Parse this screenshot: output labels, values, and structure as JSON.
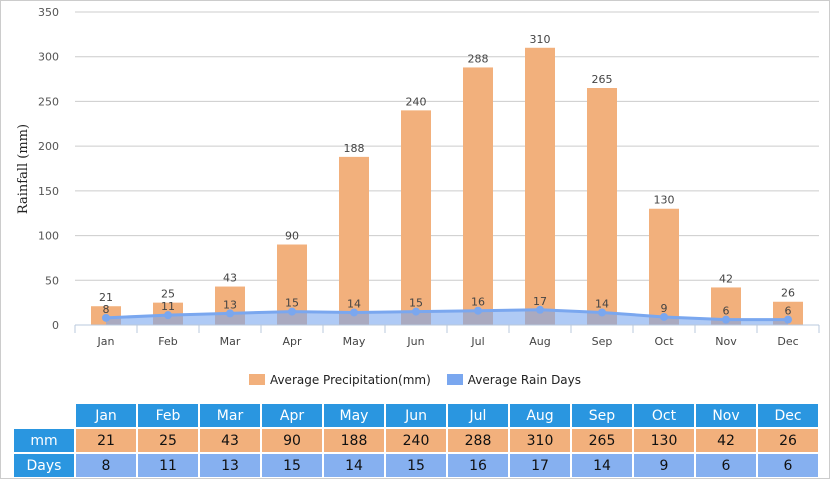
{
  "chart_data": {
    "type": "bar",
    "title": "",
    "ylabel": "Rainfall (mm)",
    "xlabel": "",
    "ylim": [
      0,
      350
    ],
    "yticks": [
      0,
      50,
      100,
      150,
      200,
      250,
      300,
      350
    ],
    "categories": [
      "Jan",
      "Feb",
      "Mar",
      "Apr",
      "May",
      "Jun",
      "Jul",
      "Aug",
      "Sep",
      "Oct",
      "Nov",
      "Dec"
    ],
    "series": [
      {
        "name": "Average Precipitation(mm)",
        "type": "bar",
        "color": "#f2b07c",
        "values": [
          21,
          25,
          43,
          90,
          188,
          240,
          288,
          310,
          265,
          130,
          42,
          26
        ]
      },
      {
        "name": "Average Rain Days",
        "type": "area",
        "color": "#7aa7ef",
        "values": [
          8,
          11,
          13,
          15,
          14,
          15,
          16,
          17,
          14,
          9,
          6,
          6
        ]
      }
    ],
    "grid": true,
    "legend": "bottom"
  },
  "table": {
    "row_labels": [
      "mm",
      "Days"
    ]
  }
}
